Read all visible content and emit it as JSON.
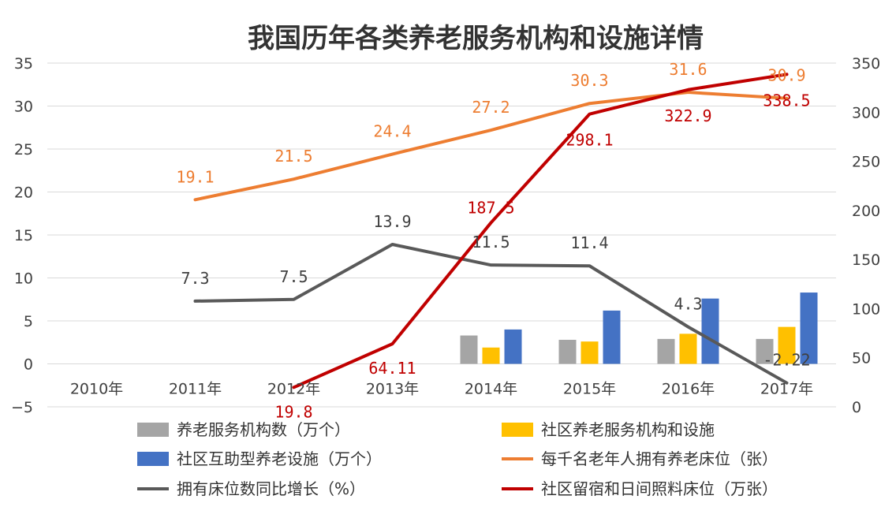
{
  "chart_data": {
    "type": "bar",
    "title": "我国历年各类养老服务机构和设施详情",
    "categories": [
      "2010年",
      "2011年",
      "2012年",
      "2013年",
      "2014年",
      "2015年",
      "2016年",
      "2017年"
    ],
    "y_left": {
      "ticks": [
        "35",
        "30",
        "25",
        "20",
        "15",
        "10",
        "5",
        "0",
        "−5"
      ],
      "min": -5,
      "max": 35
    },
    "y_right": {
      "ticks": [
        "350",
        "300",
        "250",
        "200",
        "150",
        "100",
        "50",
        "0"
      ],
      "min": 0,
      "max": 350
    },
    "series": [
      {
        "name": "养老服务机构数（万个）",
        "kind": "bar",
        "axis": "left",
        "color": "#a5a5a5",
        "values": [
          null,
          null,
          null,
          null,
          3.3,
          2.8,
          2.9,
          2.9
        ]
      },
      {
        "name": "社区养老服务机构和设施",
        "kind": "bar",
        "axis": "left",
        "color": "#ffc000",
        "values": [
          null,
          null,
          null,
          null,
          1.9,
          2.6,
          3.5,
          4.3
        ]
      },
      {
        "name": "社区互助型养老设施（万个）",
        "kind": "bar",
        "axis": "left",
        "color": "#4472c4",
        "values": [
          null,
          null,
          null,
          null,
          4.0,
          6.2,
          7.6,
          8.3
        ]
      },
      {
        "name": "每千名老年人拥有养老床位（张）",
        "kind": "line",
        "axis": "left",
        "color": "#ed7d31",
        "values": [
          null,
          19.1,
          21.5,
          24.4,
          27.2,
          30.3,
          31.6,
          30.9
        ],
        "labels": [
          "",
          "19.1",
          "21.5",
          "24.4",
          "27.2",
          "30.3",
          "31.6",
          "30.9"
        ]
      },
      {
        "name": "拥有床位数同比增长（%）",
        "kind": "line",
        "axis": "left",
        "color": "#595959",
        "values": [
          null,
          7.3,
          7.5,
          13.9,
          11.5,
          11.4,
          4.3,
          -2.22
        ],
        "labels": [
          "",
          "7.3",
          "7.5",
          "13.9",
          "11.5",
          "11.4",
          "4.3",
          "-2.22"
        ]
      },
      {
        "name": "社区留宿和日间照料床位（万张）",
        "kind": "line",
        "axis": "right",
        "color": "#c00000",
        "values": [
          null,
          null,
          19.8,
          64.11,
          187.5,
          298.1,
          322.9,
          338.5
        ],
        "labels": [
          "",
          "",
          "19.8",
          "64.11",
          "187.5",
          "298.1",
          "322.9",
          "338.5"
        ]
      }
    ],
    "legend_position": "bottom",
    "grid": true
  }
}
